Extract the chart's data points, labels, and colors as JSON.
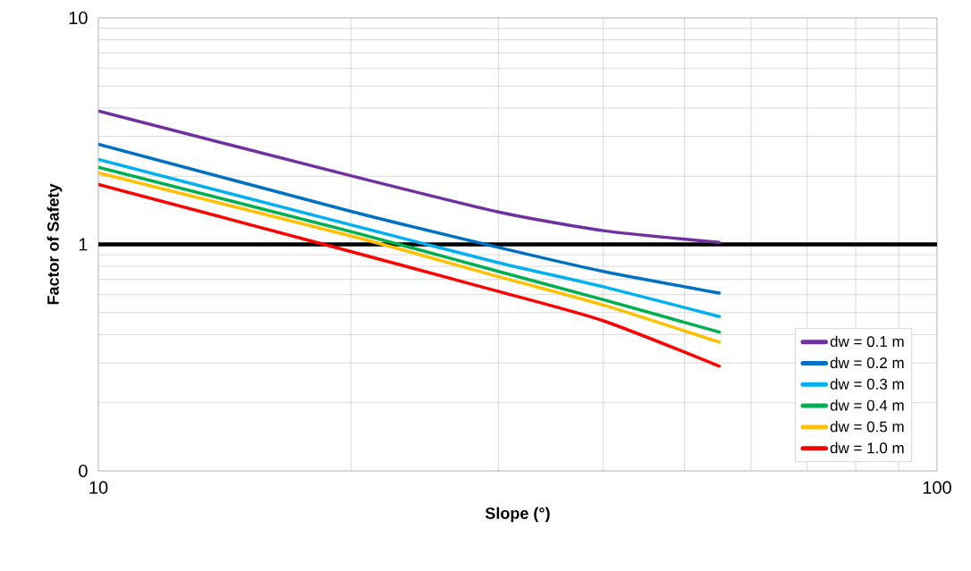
{
  "chart_data": {
    "type": "line",
    "xlabel": "Slope (°)",
    "ylabel": "Factor of Safety",
    "log": "xy",
    "xlim": [
      10,
      100
    ],
    "ylim": [
      0.1,
      10
    ],
    "xticks": [
      10,
      100
    ],
    "yticks": [
      {
        "value": 0.1,
        "label": "0"
      },
      1,
      10
    ],
    "grid": true,
    "legend": "bottom right",
    "line_style": "solid",
    "marker": "none",
    "x": [
      10,
      20,
      30,
      40,
      55
    ],
    "series": [
      {
        "name": "dw = 0.1 m",
        "color": "#7030a0",
        "values": [
          3.88,
          2.01,
          1.39,
          1.15,
          1.02
        ]
      },
      {
        "name": "dw = 0.2 m",
        "color": "#0070c0",
        "values": [
          2.77,
          1.4,
          0.97,
          0.76,
          0.61
        ]
      },
      {
        "name": "dw = 0.3 m",
        "color": "#00b0f0",
        "values": [
          2.37,
          1.22,
          0.83,
          0.65,
          0.48
        ]
      },
      {
        "name": "dw = 0.4 m",
        "color": "#00b050",
        "values": [
          2.19,
          1.14,
          0.76,
          0.57,
          0.41
        ]
      },
      {
        "name": "dw = 0.5 m",
        "color": "#ffc000",
        "values": [
          2.07,
          1.09,
          0.72,
          0.54,
          0.37
        ]
      },
      {
        "name": "dw = 1.0 m",
        "color": "#ff0000",
        "values": [
          1.84,
          0.93,
          0.62,
          0.46,
          0.29
        ]
      }
    ],
    "ref_lines": [
      {
        "axis": "y",
        "value": 1,
        "color": "#000000"
      }
    ]
  }
}
